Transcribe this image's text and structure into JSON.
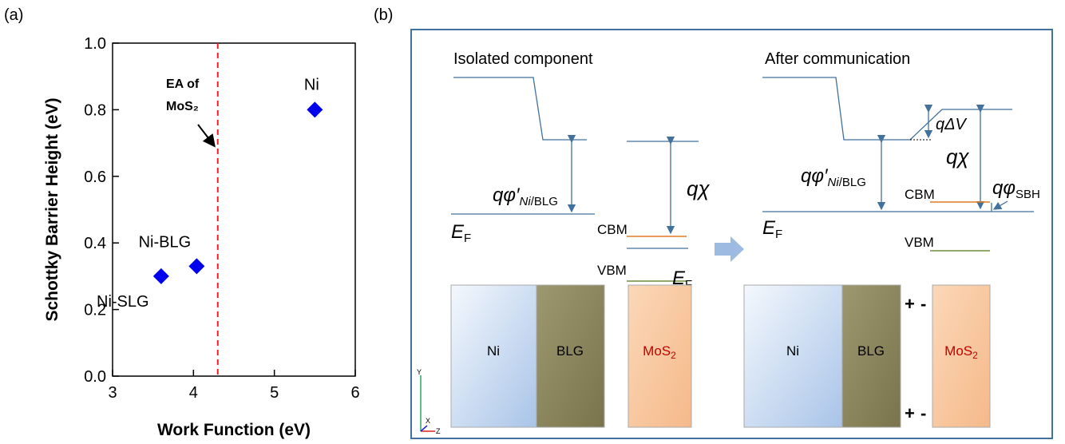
{
  "chart_data": {
    "type": "scatter",
    "panel_label": "(a)",
    "xlabel": "Work Function (eV)",
    "ylabel": "Schottky Barrier Height (eV)",
    "xlim": [
      3,
      6
    ],
    "ylim": [
      0,
      1
    ],
    "xticks": [
      3,
      4,
      5,
      6
    ],
    "yticks": [
      {
        "value": 0,
        "label": "0.0"
      },
      0.2,
      0.4,
      0.6,
      0.8,
      {
        "value": 1,
        "label": "1.0"
      }
    ],
    "series": [
      {
        "color": "#0000ee",
        "x": [
          3.6,
          4.04,
          5.5
        ],
        "values": [
          0.3,
          0.33,
          0.8
        ],
        "point_labels": [
          "Ni-SLG",
          "Ni-BLG",
          "Ni"
        ]
      }
    ],
    "vline": {
      "x": 4.3,
      "color": "#e8202a",
      "label_lines": [
        "EA of",
        "MoS₂"
      ]
    }
  },
  "panel_b": {
    "label": "(b)",
    "left_title": "Isolated component",
    "right_title": "After communication",
    "phi_main": "qφ′",
    "phi_sub_italic": "Ni",
    "phi_sub": "/BLG",
    "chi": "qχ",
    "ef_main": "E",
    "ef_sub": "F",
    "cbm": "CBM",
    "vbm": "VBM",
    "dv": "qΔV",
    "sbh_main": "qφ",
    "sbh_sub": "SBH",
    "ni": "Ni",
    "blg": "BLG",
    "mos_main": "MoS",
    "mos_sub": "2",
    "plus": "+",
    "minus": "-",
    "axis_y": "Y",
    "axis_x": "X",
    "axis_z": "Z"
  }
}
